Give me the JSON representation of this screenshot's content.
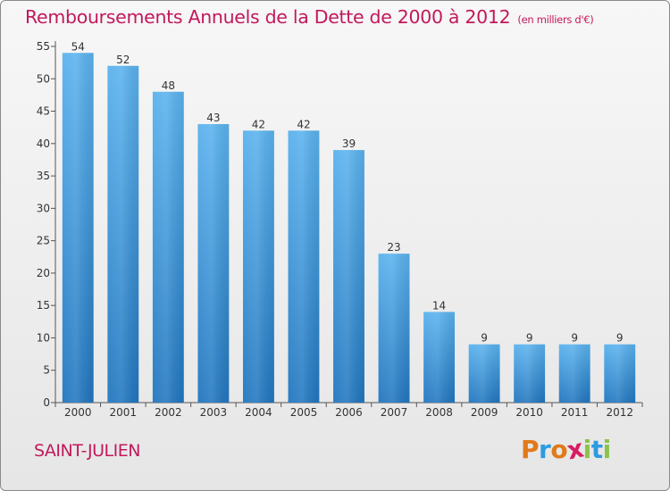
{
  "chart_data": {
    "type": "bar",
    "title": "Remboursements Annuels de la Dette de 2000 à 2012",
    "unit_note": "(en milliers d'€)",
    "categories": [
      "2000",
      "2001",
      "2002",
      "2003",
      "2004",
      "2005",
      "2006",
      "2007",
      "2008",
      "2009",
      "2010",
      "2011",
      "2012"
    ],
    "values": [
      54,
      52,
      48,
      43,
      42,
      42,
      39,
      23,
      14,
      9,
      9,
      9,
      9
    ],
    "ylim": [
      0,
      55
    ],
    "yticks": [
      0,
      5,
      10,
      15,
      20,
      25,
      30,
      35,
      40,
      45,
      50,
      55
    ],
    "xlabel": "",
    "ylabel": "",
    "grid": false,
    "bar_color": "#2f8fdc"
  },
  "location": "SAINT-JULIEN",
  "logo": {
    "text": "Proxiti",
    "colors": [
      "#e07a1a",
      "#2f9be0",
      "#e07a1a",
      "#d81b60",
      "#8bc34a",
      "#2f9be0",
      "#8bc34a"
    ]
  }
}
